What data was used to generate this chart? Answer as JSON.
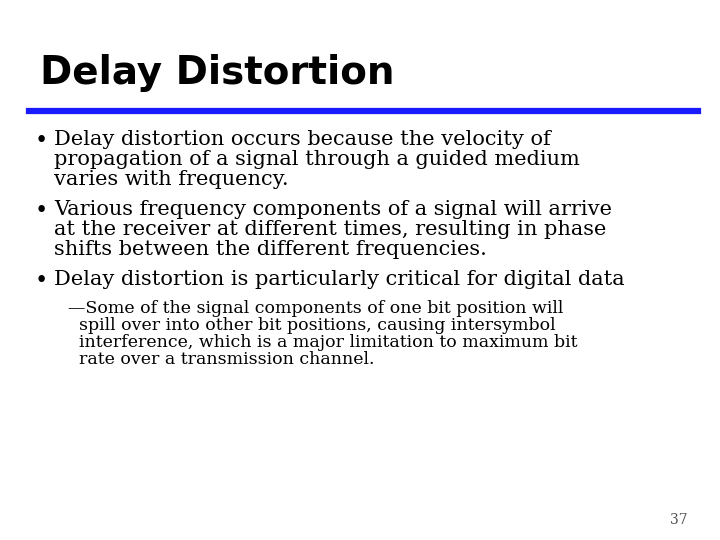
{
  "title": "Delay Distortion",
  "title_fontsize": 28,
  "title_fontweight": "bold",
  "title_color": "#000000",
  "title_font": "DejaVu Sans",
  "line_color": "#1a1aff",
  "background_color": "#ffffff",
  "page_number": "37",
  "page_number_fontsize": 10,
  "bullet_color": "#000000",
  "body_font": "DejaVu Serif",
  "body_fontsize": 15,
  "sub_fontsize": 12.5,
  "bullets": [
    {
      "lines": [
        "Delay distortion occurs because the velocity of",
        "propagation of a signal through a guided medium",
        "varies with frequency."
      ]
    },
    {
      "lines": [
        "Various frequency components of a signal will arrive",
        "at the receiver at different times, resulting in phase",
        "shifts between the different frequencies."
      ]
    },
    {
      "lines": [
        "Delay distortion is particularly critical for digital data"
      ]
    }
  ],
  "sub_lines": [
    "—Some of the signal components of one bit position will",
    "  spill over into other bit positions, causing intersymbol",
    "  interference, which is a major limitation to maximum bit",
    "  rate over a transmission channel."
  ]
}
